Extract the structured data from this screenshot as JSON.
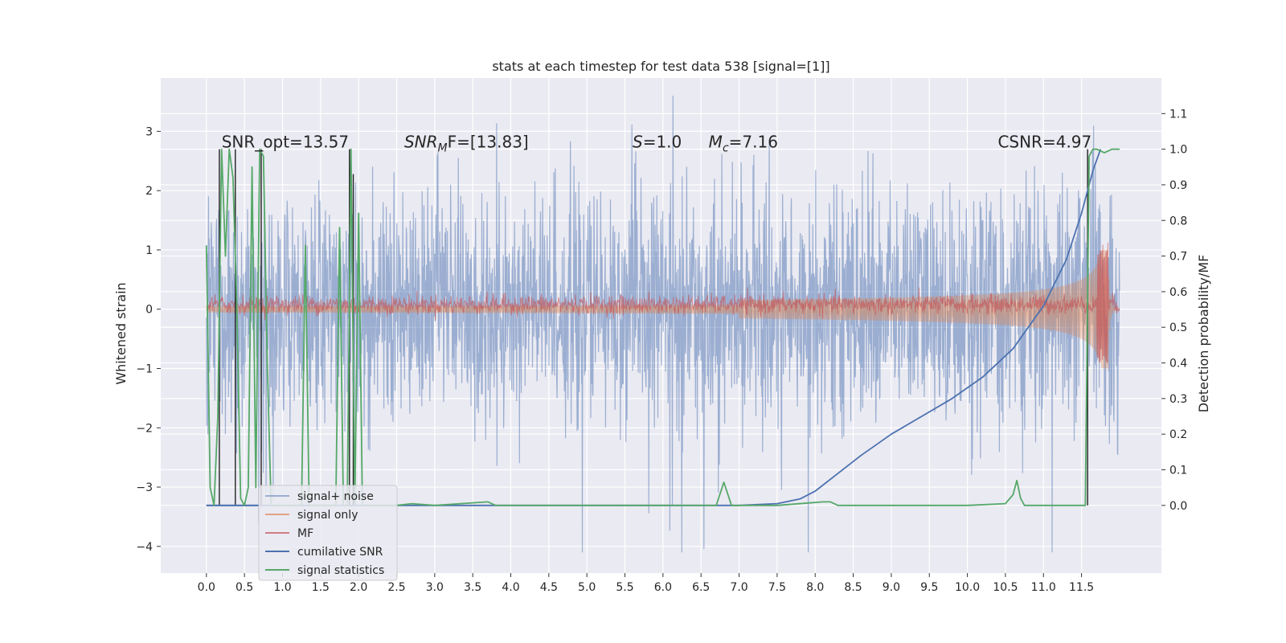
{
  "chart_data": {
    "type": "line",
    "title": "stats at each timestep for test data 538 [signal=[1]]",
    "xlabel": "",
    "ylabel": "Whitened strain",
    "ylabel_right": "Detection probability/MF",
    "xlim": [
      -0.6,
      12.55
    ],
    "ylim": [
      -4.45,
      3.9
    ],
    "ylim_right": [
      -0.19,
      1.2
    ],
    "x_ticks": [
      0.0,
      0.5,
      1.0,
      1.5,
      2.0,
      2.5,
      3.0,
      3.5,
      4.0,
      4.5,
      5.0,
      5.5,
      6.0,
      6.5,
      7.0,
      7.5,
      8.0,
      8.5,
      9.0,
      9.5,
      10.0,
      10.5,
      11.0,
      11.5
    ],
    "x_tick_labels": [
      "0.0",
      "0.5",
      "1.0",
      "1.5",
      "2.0",
      "2.5",
      "3.0",
      "3.5",
      "4.0",
      "4.5",
      "5.0",
      "5.5",
      "6.0",
      "6.5",
      "7.0",
      "7.5",
      "8.0",
      "8.5",
      "9.0",
      "9.5",
      "10.0",
      "10.5",
      "11.0",
      "11.5"
    ],
    "y_ticks": [
      -4,
      -3,
      -2,
      -1,
      0,
      1,
      2,
      3
    ],
    "y_tick_labels": [
      "−4",
      "−3",
      "−2",
      "−1",
      "0",
      "1",
      "2",
      "3"
    ],
    "y_right_ticks": [
      0.0,
      0.1,
      0.2,
      0.3,
      0.4,
      0.5,
      0.6,
      0.7,
      0.8,
      0.9,
      1.0,
      1.1
    ],
    "y_right_tick_labels": [
      "0.0",
      "0.1",
      "0.2",
      "0.3",
      "0.4",
      "0.5",
      "0.6",
      "0.7",
      "0.8",
      "0.9",
      "1.0",
      "1.1"
    ],
    "grid": true,
    "legend_position": "lower-left",
    "annotations": [
      {
        "text": "SNR_opt=13.57",
        "x": 0.2
      },
      {
        "text": "SNR_MF=[13.83]",
        "x": 2.6,
        "base": "SNR",
        "sub": "M",
        "rest": "F=[13.83]"
      },
      {
        "text": "S=1.0",
        "x": 5.6,
        "base": "S",
        "sub": "",
        "rest": "=1.0"
      },
      {
        "text": "M_c=7.16",
        "x": 6.6,
        "base": "M",
        "sub": "c",
        "rest": "=7.16"
      },
      {
        "text": "CSNR=4.97",
        "x": 10.4
      }
    ],
    "series": [
      {
        "name": "signal+ noise",
        "color": "#4c72b0",
        "alpha": 0.5,
        "axis": "left",
        "t_range": [
          0.0,
          12.0
        ],
        "envelope_std": 0.95,
        "peak_range": [
          -4.1,
          3.6
        ]
      },
      {
        "name": "signal only",
        "color": "#dd8452",
        "alpha": 0.5,
        "axis": "left",
        "t_range": [
          0.0,
          12.0
        ],
        "amplitude_start": 0.05,
        "amplitude_end": 1.0,
        "chirp_end": 11.85
      },
      {
        "name": "MF",
        "color": "#c44e52",
        "alpha": 0.6,
        "axis": "left",
        "t_range": [
          0.0,
          12.0
        ],
        "noise_std": 0.08
      },
      {
        "name": "cumilative SNR",
        "color": "#4c72b0",
        "axis": "right",
        "x": [
          0.0,
          7.0,
          7.5,
          7.8,
          8.0,
          8.3,
          8.6,
          9.0,
          9.4,
          9.8,
          10.2,
          10.6,
          11.0,
          11.3,
          11.5,
          11.65,
          11.75
        ],
        "y": [
          0.0,
          0.0,
          0.005,
          0.018,
          0.04,
          0.09,
          0.14,
          0.2,
          0.25,
          0.3,
          0.36,
          0.44,
          0.56,
          0.69,
          0.82,
          0.94,
          1.0
        ]
      },
      {
        "name": "signal statistics",
        "color": "#55a868",
        "axis": "right",
        "x": [
          0.0,
          0.05,
          0.1,
          0.15,
          0.2,
          0.25,
          0.3,
          0.35,
          0.4,
          0.45,
          0.5,
          0.55,
          0.6,
          0.65,
          0.7,
          0.75,
          0.8,
          0.85,
          0.9,
          0.95,
          1.0,
          1.05,
          1.1,
          1.15,
          1.2,
          1.25,
          1.3,
          1.35,
          1.4,
          1.45,
          1.5,
          1.55,
          1.6,
          1.65,
          1.7,
          1.75,
          1.8,
          1.85,
          1.9,
          1.95,
          2.0,
          2.05,
          2.5,
          2.7,
          3.0,
          3.7,
          3.8,
          4.0,
          5.0,
          6.0,
          6.7,
          6.8,
          6.9,
          7.5,
          8.1,
          8.2,
          8.3,
          9.0,
          10.0,
          10.5,
          10.6,
          10.65,
          10.7,
          10.75,
          10.8,
          11.0,
          11.55,
          11.58,
          11.6,
          11.65,
          11.7,
          11.8,
          11.9,
          12.0
        ],
        "y": [
          0.73,
          0.05,
          0.0,
          0.25,
          1.0,
          0.7,
          1.0,
          0.92,
          0.55,
          0.02,
          0.0,
          0.05,
          0.95,
          0.05,
          1.0,
          0.98,
          0.4,
          0.0,
          0.0,
          0.0,
          0.0,
          0.0,
          0.0,
          0.0,
          0.0,
          0.0,
          0.73,
          0.0,
          0.0,
          0.0,
          0.0,
          0.0,
          0.0,
          0.0,
          0.0,
          0.78,
          0.0,
          0.0,
          1.0,
          0.0,
          0.82,
          0.0,
          0.0,
          0.005,
          0.0,
          0.01,
          0.0,
          0.0,
          0.0,
          0.0,
          0.0,
          0.065,
          0.0,
          0.0,
          0.01,
          0.01,
          0.0,
          0.0,
          0.0,
          0.005,
          0.03,
          0.07,
          0.02,
          0.0,
          0.0,
          0.0,
          0.0,
          0.6,
          0.98,
          1.0,
          1.0,
          0.99,
          1.0,
          1.0
        ]
      }
    ],
    "vertical_lines": {
      "color": "#222222",
      "axis": "right",
      "lines": [
        {
          "x": 0.17,
          "y": [
            0.0,
            1.0
          ]
        },
        {
          "x": 0.38,
          "y": [
            0.0,
            1.0
          ]
        },
        {
          "x": 0.72,
          "y": [
            0.0,
            1.0
          ]
        },
        {
          "x": 1.88,
          "y": [
            0.0,
            1.0
          ]
        },
        {
          "x": 1.93,
          "y": [
            0.0,
            0.93
          ]
        },
        {
          "x": 11.58,
          "y": [
            0.0,
            1.0
          ]
        }
      ]
    },
    "horizontal_segments": [
      {
        "x": [
          0.0,
          0.72
        ],
        "y": 0.0,
        "axis": "right",
        "color": "#4c72b0"
      }
    ]
  },
  "legend": {
    "items": [
      {
        "label": "signal+ noise",
        "color": "#4c72b0",
        "alpha": 0.5
      },
      {
        "label": "signal only",
        "color": "#dd8452",
        "alpha": 0.7
      },
      {
        "label": "MF",
        "color": "#c44e52",
        "alpha": 0.7
      },
      {
        "label": "cumilative SNR",
        "color": "#4c72b0",
        "alpha": 1.0
      },
      {
        "label": "signal statistics",
        "color": "#55a868",
        "alpha": 1.0
      }
    ]
  },
  "colors": {
    "plot_background": "#eaeaf2",
    "grid": "#ffffff"
  }
}
